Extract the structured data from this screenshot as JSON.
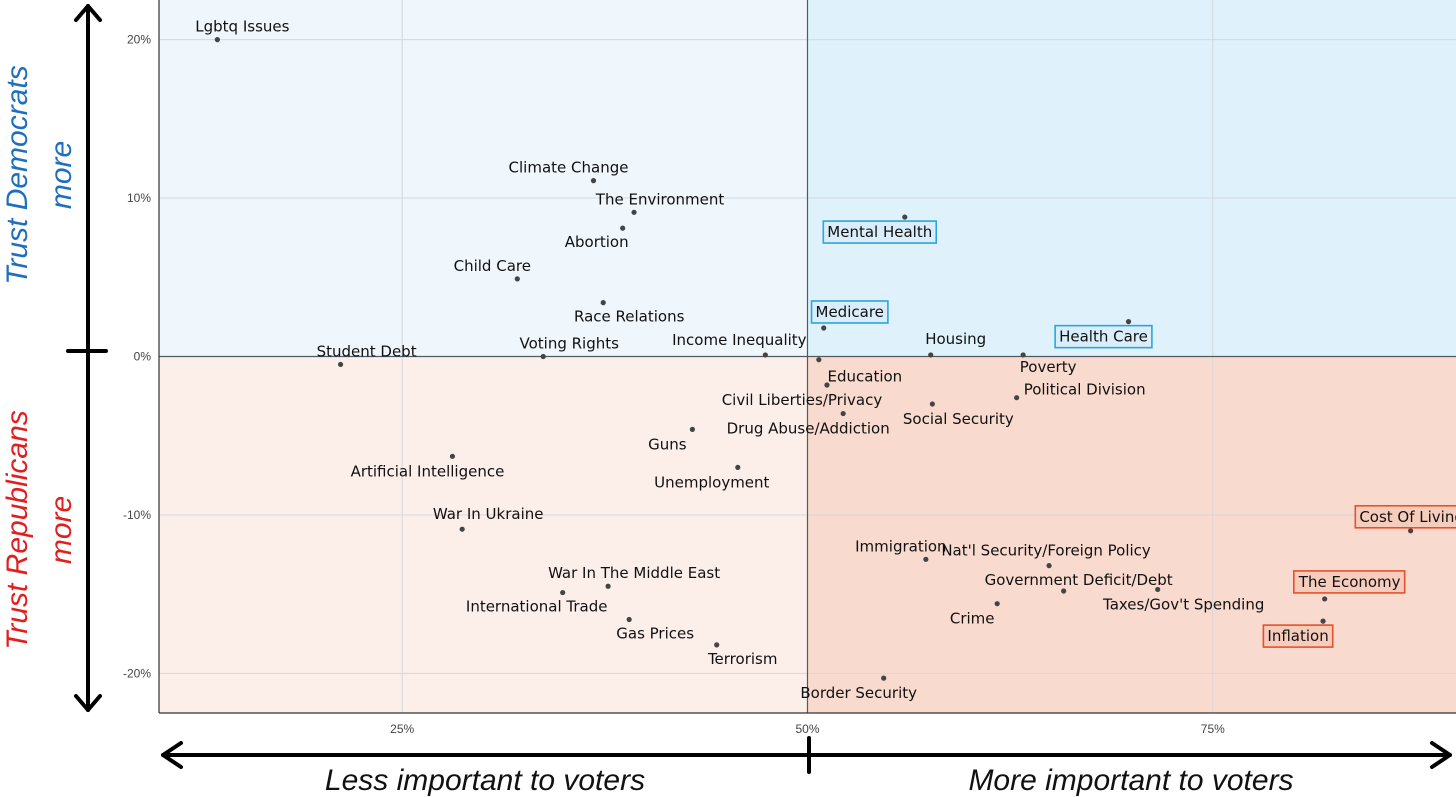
{
  "chart_data": {
    "type": "scatter",
    "xlim": [
      10,
      90
    ],
    "ylim": [
      -22.5,
      22.5
    ],
    "x_ticks": [
      25,
      50,
      75
    ],
    "x_tick_labels": [
      "25%",
      "50%",
      "75%"
    ],
    "y_ticks": [
      20,
      10,
      0,
      -10,
      -20
    ],
    "y_tick_labels": [
      "20%",
      "10%",
      "0%",
      "-10%",
      "-20%"
    ],
    "grid": true,
    "left_axis_top": {
      "line1": "Trust Democrats",
      "line2": "more"
    },
    "left_axis_bottom": {
      "line1": "Trust Republicans",
      "line2": "more"
    },
    "bottom_axis_left": "Less important to voters",
    "bottom_axis_right": "More important to voters",
    "colors": {
      "dem_bg_left": "#eff6fc",
      "dem_bg_right": "#dff1fb",
      "rep_bg_left": "#fcefea",
      "rep_bg_right": "#f9dace",
      "dem_text": "#1f6fbf",
      "rep_text": "#e02020",
      "box_blue": "#2aa5df",
      "box_red": "#e8502a"
    },
    "points": [
      {
        "label": "Lgbtq Issues",
        "x": 13.6,
        "y": 20.0
      },
      {
        "label": "Climate Change",
        "x": 36.8,
        "y": 11.1
      },
      {
        "label": "The Environment",
        "x": 39.3,
        "y": 9.1
      },
      {
        "label": "Abortion",
        "x": 38.6,
        "y": 8.1
      },
      {
        "label": "Child Care",
        "x": 32.1,
        "y": 4.9
      },
      {
        "label": "Race Relations",
        "x": 37.4,
        "y": 3.4
      },
      {
        "label": "Voting Rights",
        "x": 33.7,
        "y": 0.0
      },
      {
        "label": "Student Debt",
        "x": 21.2,
        "y": -0.5
      },
      {
        "label": "Income Inequality",
        "x": 47.4,
        "y": 0.1
      },
      {
        "label": "Mental Health",
        "x": 56.0,
        "y": 8.8,
        "highlight": "blue"
      },
      {
        "label": "Medicare",
        "x": 51.0,
        "y": 1.8,
        "highlight": "blue"
      },
      {
        "label": "Health Care",
        "x": 69.8,
        "y": 2.2,
        "highlight": "blue"
      },
      {
        "label": "Housing",
        "x": 57.6,
        "y": 0.1
      },
      {
        "label": "Education",
        "x": 50.7,
        "y": -0.2
      },
      {
        "label": "Poverty",
        "x": 63.3,
        "y": 0.1
      },
      {
        "label": "Civil Liberties/Privacy",
        "x": 51.2,
        "y": -1.8
      },
      {
        "label": "Political Division",
        "x": 62.9,
        "y": -2.6
      },
      {
        "label": "Social Security",
        "x": 57.7,
        "y": -3.0
      },
      {
        "label": "Drug Abuse/Addiction",
        "x": 52.2,
        "y": -3.6
      },
      {
        "label": "Guns",
        "x": 42.9,
        "y": -4.6
      },
      {
        "label": "Artificial Intelligence",
        "x": 28.1,
        "y": -6.3
      },
      {
        "label": "Unemployment",
        "x": 45.7,
        "y": -7.0
      },
      {
        "label": "War In Ukraine",
        "x": 28.7,
        "y": -10.9
      },
      {
        "label": "Cost Of Living",
        "x": 87.2,
        "y": -11.0,
        "highlight": "red"
      },
      {
        "label": "Immigration",
        "x": 57.3,
        "y": -12.8
      },
      {
        "label": "Nat'l Security/Foreign Policy",
        "x": 64.9,
        "y": -13.2
      },
      {
        "label": "Government Deficit/Debt",
        "x": 65.8,
        "y": -14.8
      },
      {
        "label": "War In The Middle East",
        "x": 37.7,
        "y": -14.5
      },
      {
        "label": "International Trade",
        "x": 34.9,
        "y": -14.9
      },
      {
        "label": "The Economy",
        "x": 81.9,
        "y": -15.3,
        "highlight": "red"
      },
      {
        "label": "Taxes/Gov't Spending",
        "x": 71.6,
        "y": -14.7
      },
      {
        "label": "Crime",
        "x": 61.7,
        "y": -15.6
      },
      {
        "label": "Gas Prices",
        "x": 39.0,
        "y": -16.6
      },
      {
        "label": "Inflation",
        "x": 81.8,
        "y": -16.7,
        "highlight": "red"
      },
      {
        "label": "Terrorism",
        "x": 44.4,
        "y": -18.2
      },
      {
        "label": "Border Security",
        "x": 54.7,
        "y": -20.3
      }
    ]
  }
}
